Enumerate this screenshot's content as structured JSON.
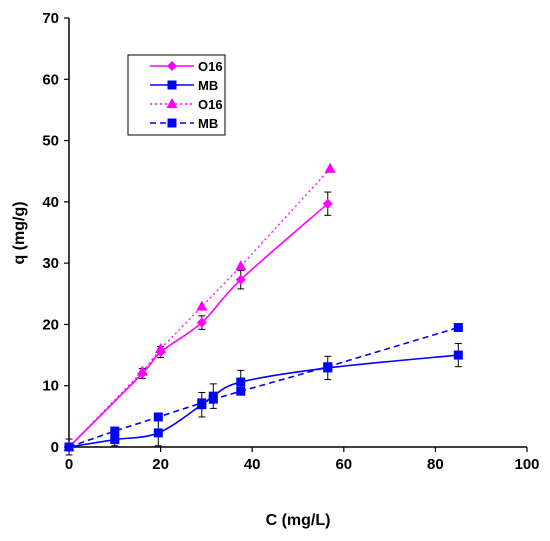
{
  "chart_data": {
    "type": "scatter",
    "title": "",
    "xlabel": "C (mg/L)",
    "ylabel": "q (mg/g)",
    "xlim": [
      0,
      100
    ],
    "ylim": [
      0,
      70
    ],
    "xticks": [
      0,
      20,
      40,
      60,
      80,
      100
    ],
    "yticks": [
      0,
      10,
      20,
      30,
      40,
      50,
      60,
      70
    ],
    "grid": false,
    "legend_position": "top-left",
    "series": [
      {
        "name": "O16",
        "kind": "experimental",
        "color": "#ff00ff",
        "marker": "diamond",
        "line": "solid-smooth",
        "x": [
          0,
          16,
          20,
          29,
          37.5,
          56.5
        ],
        "y": [
          0,
          12,
          15.5,
          20.3,
          27.3,
          39.7
        ],
        "error": [
          0,
          0.8,
          0.9,
          1.1,
          1.5,
          1.9
        ]
      },
      {
        "name": "MB",
        "kind": "experimental",
        "color": "#0000ff",
        "marker": "square",
        "line": "solid-smooth",
        "x": [
          0,
          10,
          19.5,
          29,
          31.5,
          37.5,
          56.5,
          85
        ],
        "y": [
          0,
          1.2,
          2.3,
          6.9,
          8.3,
          10.6,
          12.9,
          15
        ],
        "error": [
          1.3,
          1.0,
          2.1,
          2.0,
          2.0,
          1.9,
          1.9,
          1.9
        ]
      },
      {
        "name": "O16",
        "kind": "model",
        "color": "#ff00ff",
        "marker": "triangle",
        "line": "dotted",
        "x": [
          0,
          16,
          20,
          29,
          37.5,
          57
        ],
        "y": [
          0,
          12.3,
          16,
          22.9,
          29.5,
          45.4
        ],
        "error": []
      },
      {
        "name": "MB",
        "kind": "model",
        "color": "#0000ff",
        "marker": "square",
        "line": "dashed",
        "x": [
          0,
          10,
          19.5,
          29,
          31.5,
          37.5,
          56.5,
          85
        ],
        "y": [
          0,
          2.6,
          4.9,
          7.2,
          7.8,
          9.1,
          13.1,
          19.5
        ],
        "error": []
      }
    ]
  }
}
